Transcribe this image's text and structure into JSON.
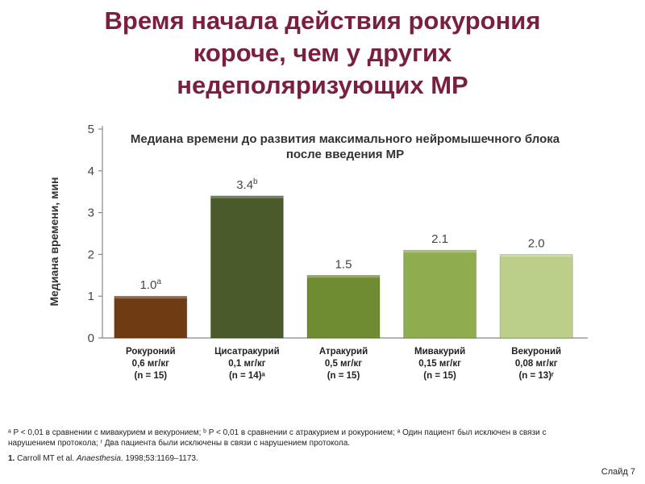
{
  "slide": {
    "title_lines": [
      "Время начала действия рокурония",
      "короче, чем у других",
      "недеполяризующих МР"
    ],
    "footnotes": [
      "ᵃ P < 0,01 в сравнении с мивакурием и векуронием; ᵇ P < 0,01 в сравнении с атракурием и рокуронием; ᵃ Один пациент был исключен в связи с",
      "нарушением протокола; ʳ Два пациента были исключены в связи с нарушением протокола."
    ],
    "reference": {
      "number": "1.",
      "authors": " Carroll MT et al. ",
      "journal": "Anaesthesia",
      "details": ". 1998;53:1169–1173."
    },
    "slide_number": "Слайд 7"
  },
  "chart_data": {
    "type": "bar",
    "title_lines": [
      "Медиана времени до развития максимального нейромышечного блока",
      "после введения МР"
    ],
    "ylabel": "Медиана времени, мин",
    "ylim": [
      0,
      5
    ],
    "yticks": [
      0,
      1,
      2,
      3,
      4,
      5
    ],
    "grid": false,
    "categories": [
      {
        "name": "Рокуроний",
        "dose": "0,6 мг/кг",
        "n": "(n = 15)"
      },
      {
        "name": "Цисатракурий",
        "dose": "0,1 мг/кг",
        "n": "(n = 14)ᵃ"
      },
      {
        "name": "Атракурий",
        "dose": "0,5 мг/кг",
        "n": "(n = 15)"
      },
      {
        "name": "Мивакурий",
        "dose": "0,15 мг/кг",
        "n": "(n = 15)"
      },
      {
        "name": "Векуроний",
        "dose": "0,08 мг/кг",
        "n": "(n = 13)ʳ"
      }
    ],
    "values": [
      1.0,
      3.4,
      1.5,
      2.1,
      2.0
    ],
    "value_labels": [
      "1.0",
      "3.4",
      "1.5",
      "2.1",
      "2.0"
    ],
    "label_superscripts": [
      "a",
      "b",
      "",
      "",
      ""
    ],
    "colors": [
      "#6e3b12",
      "#4a5a2a",
      "#6f8c32",
      "#8fad4e",
      "#bccf8a"
    ]
  }
}
